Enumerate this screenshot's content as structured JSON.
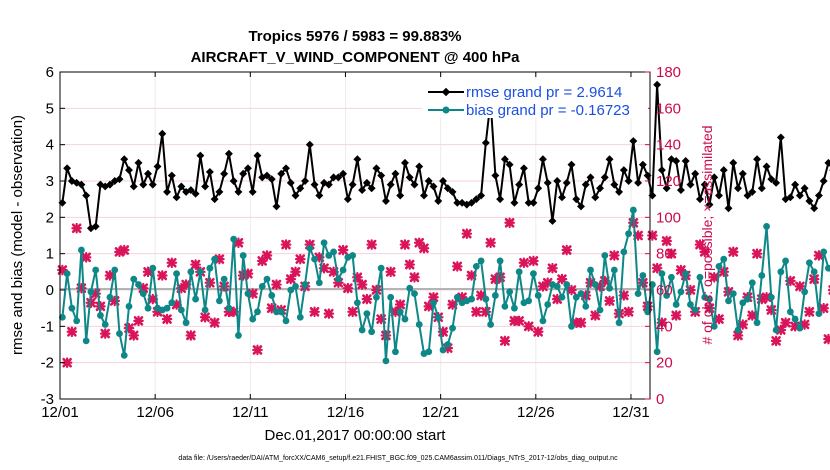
{
  "chart_data": {
    "type": "line",
    "title_line1": "Tropics 5976 / 5983 = 99.883%",
    "title_line2": "AIRCRAFT_V_WIND_COMPONENT @ 400 hPa",
    "xlabel": "Dec.01,2017 00:00:00 start",
    "ylabel": "rmse and bias (model - observation)",
    "ylabel_right": "# of obs: o=possible; ×=assimilated",
    "footer": "data file: /Users/raeder/DAI/ATM_forcXX/CAM6_setup/f.e21.FHIST_BGC.f09_025.CAM6assim.011/Diags_NTrS_2017-12/obs_diag_output.nc",
    "xlim": [
      0,
      31
    ],
    "ylim": [
      -3,
      6
    ],
    "ylim_right": [
      0,
      180
    ],
    "grid": true,
    "legend_position": "top-right",
    "x_ticks": [
      0,
      5,
      10,
      15,
      20,
      25,
      30
    ],
    "x_tick_labels": [
      "12/01",
      "12/06",
      "12/11",
      "12/16",
      "12/21",
      "12/26",
      "12/31"
    ],
    "y_ticks": [
      -3,
      -2,
      -1,
      0,
      1,
      2,
      3,
      4,
      5,
      6
    ],
    "y_tick_labels": [
      "-3",
      "-2",
      "-1",
      "0",
      "1",
      "2",
      "3",
      "4",
      "5",
      "6"
    ],
    "y_ticks_right": [
      0,
      20,
      40,
      60,
      80,
      100,
      120,
      140,
      160,
      180
    ],
    "y_tick_labels_right": [
      "0",
      "20",
      "40",
      "60",
      "80",
      "100",
      "120",
      "140",
      "160",
      "180"
    ],
    "x_step_days": 0.25,
    "x_start_day": 0.125,
    "series": [
      {
        "name": "rmse grand pr = 2.9614",
        "color": "#000000",
        "marker": "diamond",
        "values": [
          2.4,
          3.35,
          3.0,
          2.95,
          2.9,
          2.6,
          1.7,
          1.75,
          2.9,
          2.85,
          2.9,
          3.0,
          3.05,
          3.6,
          3.3,
          2.85,
          3.5,
          2.9,
          3.2,
          2.9,
          3.4,
          4.3,
          2.7,
          3.15,
          2.55,
          2.85,
          2.7,
          2.75,
          2.65,
          3.7,
          2.85,
          3.25,
          2.5,
          2.7,
          3.2,
          3.75,
          3.0,
          2.7,
          3.2,
          3.35,
          2.7,
          3.7,
          3.1,
          3.15,
          3.05,
          2.3,
          3.2,
          3.35,
          2.95,
          2.6,
          2.8,
          3.0,
          4.0,
          2.9,
          2.6,
          2.95,
          2.9,
          3.1,
          3.1,
          3.2,
          2.5,
          2.9,
          3.6,
          2.75,
          2.95,
          2.8,
          3.35,
          3.15,
          2.45,
          2.9,
          3.2,
          2.6,
          3.5,
          3.1,
          2.9,
          3.4,
          2.6,
          3.0,
          2.85,
          2.45,
          3.0,
          2.8,
          2.7,
          2.4,
          2.4,
          2.35,
          2.4,
          2.5,
          2.6,
          4.05,
          5.2,
          3.15,
          2.5,
          3.6,
          3.45,
          2.4,
          2.9,
          3.35,
          2.4,
          2.4,
          2.8,
          3.6,
          2.95,
          1.9,
          3.0,
          2.55,
          2.95,
          3.45,
          2.5,
          2.3,
          2.9,
          3.1,
          2.55,
          2.8,
          3.1,
          3.6,
          2.9,
          2.7,
          3.3,
          3.0,
          4.1,
          2.95,
          3.45,
          3.15,
          2.6,
          5.65,
          3.3,
          2.8,
          3.6,
          3.55,
          2.75,
          3.55,
          2.9,
          3.2,
          2.5,
          2.9,
          2.35,
          3.1,
          2.6,
          3.3,
          2.25,
          3.5,
          2.8,
          3.2,
          2.6,
          2.7,
          3.6,
          2.8,
          3.4,
          3.05,
          2.95,
          4.2,
          2.5,
          2.55,
          2.9,
          2.6,
          2.8,
          2.45,
          2.25,
          2.6,
          3.0,
          3.5,
          3.3,
          3.3,
          3.25,
          3.6,
          4.0,
          3.55,
          3.1,
          3.05
        ]
      },
      {
        "name": "bias grand pr = -0.16723",
        "color": "#0d8787",
        "marker": "circle",
        "values": [
          -0.75,
          0.45,
          -0.5,
          -0.85,
          1.1,
          -1.4,
          -0.05,
          0.55,
          -0.7,
          -0.95,
          -0.2,
          0.55,
          -1.2,
          -1.8,
          -0.45,
          0.3,
          0.15,
          -0.1,
          -0.5,
          0.6,
          -0.5,
          -0.55,
          -0.5,
          -0.35,
          0.45,
          -0.55,
          -0.9,
          0.5,
          -0.25,
          0.5,
          -0.55,
          0.6,
          0.85,
          -0.3,
          0.3,
          -0.5,
          1.4,
          -1.25,
          0.95,
          -0.1,
          -0.8,
          -0.6,
          0.1,
          0.3,
          -0.15,
          -0.6,
          -0.6,
          -0.85,
          0.0,
          0.1,
          -0.75,
          0.15,
          1.15,
          0.85,
          0.2,
          1.3,
          0.95,
          1.05,
          0.3,
          0.55,
          0.9,
          0.95,
          -0.35,
          -1.1,
          -0.65,
          -1.15,
          -0.2,
          0.6,
          -1.95,
          -0.2,
          -1.7,
          -0.6,
          -0.8,
          0.05,
          -0.1,
          -0.95,
          -1.75,
          -1.7,
          -0.35,
          -0.75,
          -1.65,
          -1.5,
          -1.05,
          -0.2,
          -0.35,
          -0.3,
          -0.25,
          0.65,
          0.8,
          -0.25,
          -0.95,
          -0.15,
          0.8,
          -0.45,
          -0.05,
          -0.5,
          0.5,
          -0.35,
          -0.3,
          0.45,
          -0.15,
          -0.85,
          -0.4,
          0.15,
          0.1,
          -0.2,
          0.15,
          -1.0,
          -0.2,
          -0.1,
          -0.45,
          0.55,
          0.15,
          -0.55,
          0.95,
          0.05,
          0.55,
          -0.9,
          1.05,
          1.55,
          2.2,
          -0.1,
          0.4,
          -0.6,
          0.15,
          -1.7,
          0.45,
          -0.15,
          0.35,
          -0.4,
          -0.05,
          0.45,
          -0.4,
          -0.55,
          0.35,
          -0.2,
          -0.25,
          -1.0,
          0.65,
          0.85,
          -0.3,
          -0.1,
          -1.1,
          -0.35,
          -0.25,
          0.2,
          -0.9,
          0.4,
          1.75,
          -0.2,
          -1.1,
          0.5,
          0.8,
          -0.6,
          -0.8,
          -1.05,
          -0.05,
          0.75,
          0.5,
          -0.65,
          1.05,
          0.6,
          0.5,
          1.55,
          0.1,
          2.1,
          -1.65
        ]
      },
      {
        "name": "# of obs assimilated",
        "color": "#d9145a",
        "marker": "x",
        "axis": "right",
        "values": [
          71,
          20,
          37,
          94,
          61,
          78,
          53,
          58,
          51,
          36,
          68,
          54,
          81,
          82,
          39,
          35,
          43,
          61,
          70,
          55,
          48,
          68,
          44,
          75,
          52,
          61,
          63,
          35,
          74,
          70,
          45,
          64,
          42,
          77,
          62,
          48,
          48,
          86,
          68,
          69,
          58,
          27,
          76,
          79,
          50,
          63,
          49,
          85,
          66,
          70,
          77,
          62,
          85,
          48,
          78,
          72,
          47,
          70,
          64,
          82,
          61,
          48,
          67,
          63,
          55,
          85,
          60,
          44,
          35,
          70,
          48,
          52,
          85,
          74,
          67,
          86,
          83,
          51,
          56,
          45,
          37,
          28,
          52,
          73,
          56,
          91,
          68,
          48,
          57,
          48,
          86,
          66,
          67,
          32,
          97,
          43,
          43,
          75,
          40,
          76,
          37,
          62,
          64,
          72,
          55,
          66,
          82,
          60,
          42,
          42,
          57,
          64,
          46,
          62,
          65,
          54,
          79,
          47,
          57,
          48,
          97,
          90,
          64,
          51,
          90,
          72,
          42,
          87,
          80,
          46,
          71,
          68,
          60,
          48,
          85,
          81,
          50,
          67,
          44,
          70,
          59,
          81,
          35,
          41,
          56,
          46,
          80,
          55,
          56,
          49,
          32,
          38,
          42,
          65,
          40,
          62,
          41,
          48,
          66,
          79,
          50,
          33,
          60,
          74,
          53,
          75,
          46,
          92,
          94,
          43,
          53
        ]
      }
    ]
  }
}
